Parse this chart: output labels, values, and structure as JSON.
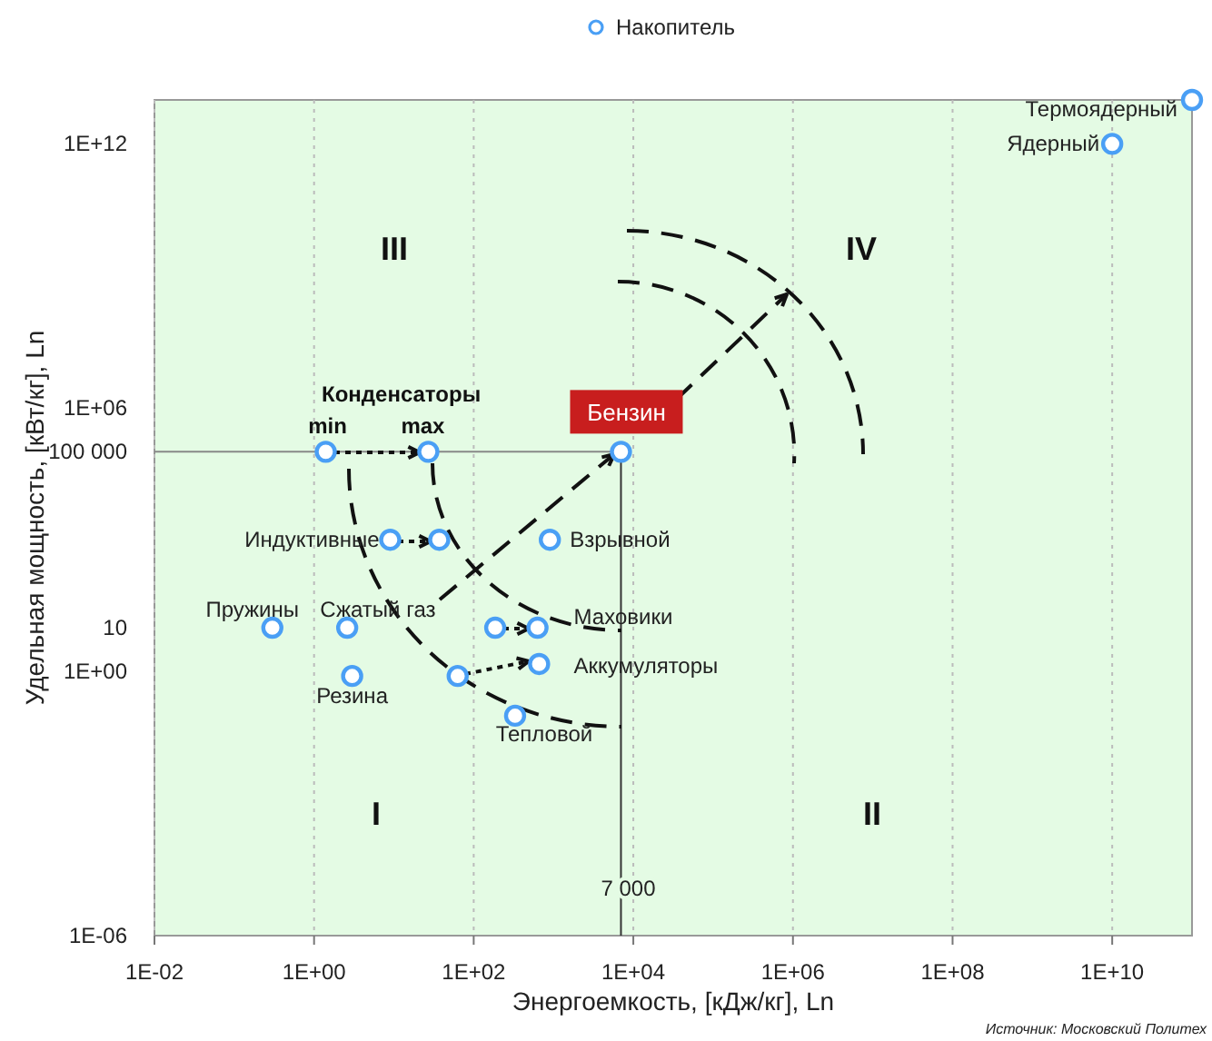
{
  "chart_data": {
    "type": "scatter",
    "xlabel": "Энергоемкость,  [кДж/кг], Ln",
    "ylabel": "Удельная мощность,  [кВт/кг], Ln",
    "log": "xy",
    "grid": "x",
    "legend": "top",
    "marker": "circle",
    "xlim": [
      0.01,
      100000000000
    ],
    "ylim": [
      1e-06,
      10000000000000
    ],
    "xticks": [
      {
        "value": 0.01,
        "label": "1E-02"
      },
      {
        "value": 1,
        "label": "1E+00"
      },
      {
        "value": 100,
        "label": "1E+02"
      },
      {
        "value": 10000,
        "label": "1E+04"
      },
      {
        "value": 1000000,
        "label": "1E+06"
      },
      {
        "value": 100000000,
        "label": "1E+08"
      },
      {
        "value": 10000000000,
        "label": "1E+10"
      }
    ],
    "yticks": [
      {
        "value": 1e-06,
        "label": "1E-06"
      },
      {
        "value": 1,
        "label": "1E+00"
      },
      {
        "value": 10,
        "label": "10"
      },
      {
        "value": 100000,
        "label": "100 000"
      },
      {
        "value": 1000000,
        "label": "1E+06"
      },
      {
        "value": 1000000000000,
        "label": "1E+12"
      }
    ],
    "series": [
      {
        "name": "Накопитель",
        "color": "#4a9ff5",
        "x": [
          100000000000,
          10000000000,
          7000,
          1.4,
          27,
          9,
          37,
          900,
          0.3,
          2.6,
          186,
          630,
          3,
          63,
          660,
          330
        ],
        "values": [
          10000000000000,
          1000000000000,
          100000,
          100000,
          100000,
          1000,
          1000,
          1000,
          10,
          10,
          10,
          10,
          0.8,
          0.8,
          1.5,
          0.1
        ]
      }
    ],
    "ref_lines": [
      {
        "axis": "y",
        "value": 100000,
        "color": "#888888"
      },
      {
        "axis": "x",
        "value": 7000,
        "label": "7 000",
        "color": "#333333"
      }
    ],
    "annotations": [
      {
        "text": "Термоядерный",
        "x": 100000000000,
        "y": 10000000000000
      },
      {
        "text": "Ядерный",
        "x": 10000000000,
        "y": 1000000000000
      },
      {
        "text": "Бензин",
        "x": 7000,
        "y": 100000
      },
      "Конденсаторы",
      {
        "text": "min",
        "x": 1.4,
        "y": 100000
      },
      {
        "text": "max",
        "x": 27,
        "y": 100000
      },
      {
        "text": "Индуктивные",
        "x": 9,
        "y": 1000
      },
      {
        "text": "Взрывной",
        "x": 900,
        "y": 1000
      },
      {
        "text": "Пружины",
        "x": 0.3,
        "y": 10
      },
      {
        "text": "Сжатый газ",
        "x": 2.6,
        "y": 10
      },
      {
        "text": "Маховики",
        "x": 630,
        "y": 10
      },
      {
        "text": "Резина",
        "x": 3,
        "y": 0.8
      },
      {
        "text": "Аккумуляторы",
        "x": 660,
        "y": 1.5
      },
      {
        "text": "Тепловой",
        "x": 330,
        "y": 0.1
      },
      "III",
      "IV",
      "I",
      "II",
      "Источник: Московский Политех"
    ]
  }
}
